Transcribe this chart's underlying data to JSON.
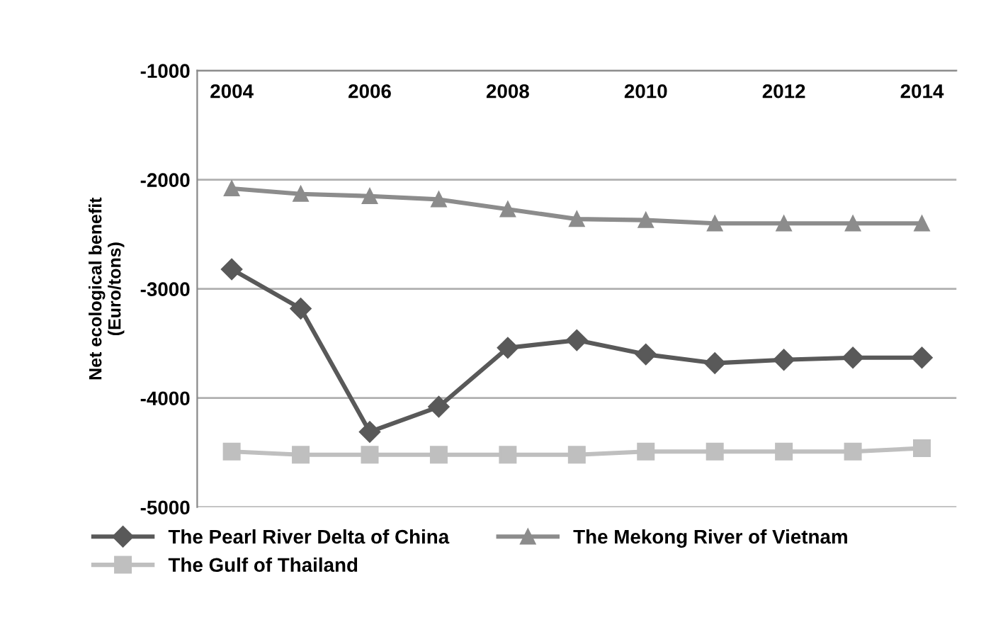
{
  "chart_data": {
    "type": "line",
    "ylabel": "Net ecological benefit\n(Euro/tons)",
    "x": [
      2004,
      2005,
      2006,
      2007,
      2008,
      2009,
      2010,
      2011,
      2012,
      2013,
      2014
    ],
    "series": [
      {
        "name": "The Pearl River Delta of China",
        "color": "#595959",
        "marker": "diamond",
        "values": [
          -2820,
          -3180,
          -4310,
          -4080,
          -3540,
          -3470,
          -3600,
          -3680,
          -3650,
          -3630,
          -3630
        ]
      },
      {
        "name": "The Gulf of Thailand",
        "color": "#bfbfbf",
        "marker": "square",
        "values": [
          -4490,
          -4520,
          -4520,
          -4520,
          -4520,
          -4520,
          -4490,
          -4490,
          -4490,
          -4490,
          -4460
        ]
      },
      {
        "name": "The Mekong River of Vietnam",
        "color": "#8c8c8c",
        "marker": "triangle",
        "values": [
          -2080,
          -2130,
          -2150,
          -2180,
          -2270,
          -2360,
          -2370,
          -2400,
          -2400,
          -2400,
          -2400
        ]
      }
    ],
    "xlim": [
      2003.5,
      2014.5
    ],
    "xticks": [
      2004,
      2006,
      2008,
      2010,
      2012,
      2014
    ],
    "ylim": [
      -5000,
      -1000
    ],
    "yticks": [
      -5000,
      -4000,
      -3000,
      -2000,
      -1000
    ],
    "grid": "y",
    "legend": "bottom"
  }
}
